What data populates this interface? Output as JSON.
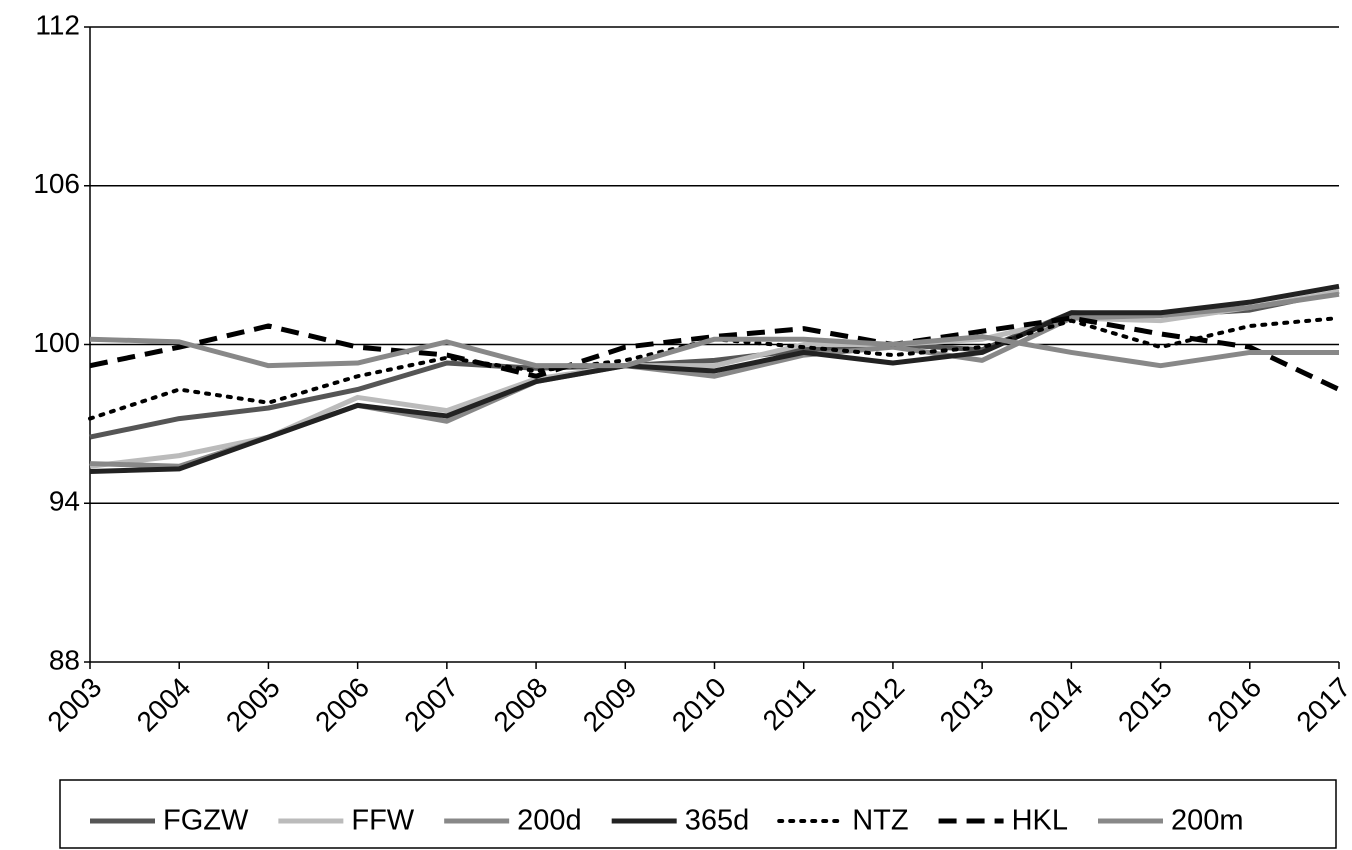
{
  "chart_data": {
    "type": "line",
    "categories": [
      "2003",
      "2004",
      "2005",
      "2006",
      "2007",
      "2008",
      "2009",
      "2010",
      "2011",
      "2012",
      "2013",
      "2014",
      "2015",
      "2016",
      "2017"
    ],
    "ylim": [
      88,
      112
    ],
    "yticks": [
      88,
      94,
      100,
      106,
      112
    ],
    "grid": true,
    "series": [
      {
        "name": "FGZW",
        "color": "#555555",
        "dash": "solid",
        "values": [
          96.5,
          97.2,
          97.6,
          98.3,
          99.3,
          99.1,
          99.2,
          99.4,
          99.8,
          100.0,
          99.8,
          101.2,
          101.1,
          101.3,
          102.0
        ]
      },
      {
        "name": "FFW",
        "color": "#bbbbbb",
        "dash": "solid",
        "values": [
          95.4,
          95.8,
          96.5,
          98.0,
          97.5,
          98.7,
          99.2,
          99.2,
          100.0,
          100.0,
          100.2,
          101.0,
          100.9,
          101.4,
          102.0
        ]
      },
      {
        "name": "200d",
        "color": "#888888",
        "dash": "solid",
        "values": [
          95.5,
          95.4,
          96.5,
          97.7,
          97.1,
          98.6,
          99.2,
          98.8,
          99.6,
          99.9,
          99.4,
          101.0,
          101.1,
          101.4,
          101.9
        ]
      },
      {
        "name": "365d",
        "color": "#222222",
        "dash": "solid",
        "values": [
          95.2,
          95.3,
          96.5,
          97.7,
          97.3,
          98.6,
          99.2,
          99.0,
          99.7,
          99.3,
          99.7,
          101.2,
          101.2,
          101.6,
          102.2
        ]
      },
      {
        "name": "NTZ",
        "color": "#000000",
        "dash": "dotted",
        "values": [
          97.2,
          98.3,
          97.8,
          98.8,
          99.5,
          99.0,
          99.4,
          100.2,
          99.9,
          99.6,
          99.9,
          100.9,
          99.9,
          100.7,
          101.0
        ]
      },
      {
        "name": "HKL",
        "color": "#000000",
        "dash": "dashed",
        "values": [
          99.2,
          99.9,
          100.7,
          99.9,
          99.6,
          98.8,
          99.9,
          100.3,
          100.6,
          100.0,
          100.5,
          101.0,
          100.4,
          99.9,
          98.3
        ]
      },
      {
        "name": "200m",
        "color": "#888888",
        "dash": "solid",
        "values": [
          100.2,
          100.1,
          99.2,
          99.3,
          100.1,
          99.2,
          99.2,
          100.2,
          100.2,
          100.0,
          100.3,
          99.7,
          99.2,
          99.7,
          99.7
        ]
      }
    ]
  }
}
